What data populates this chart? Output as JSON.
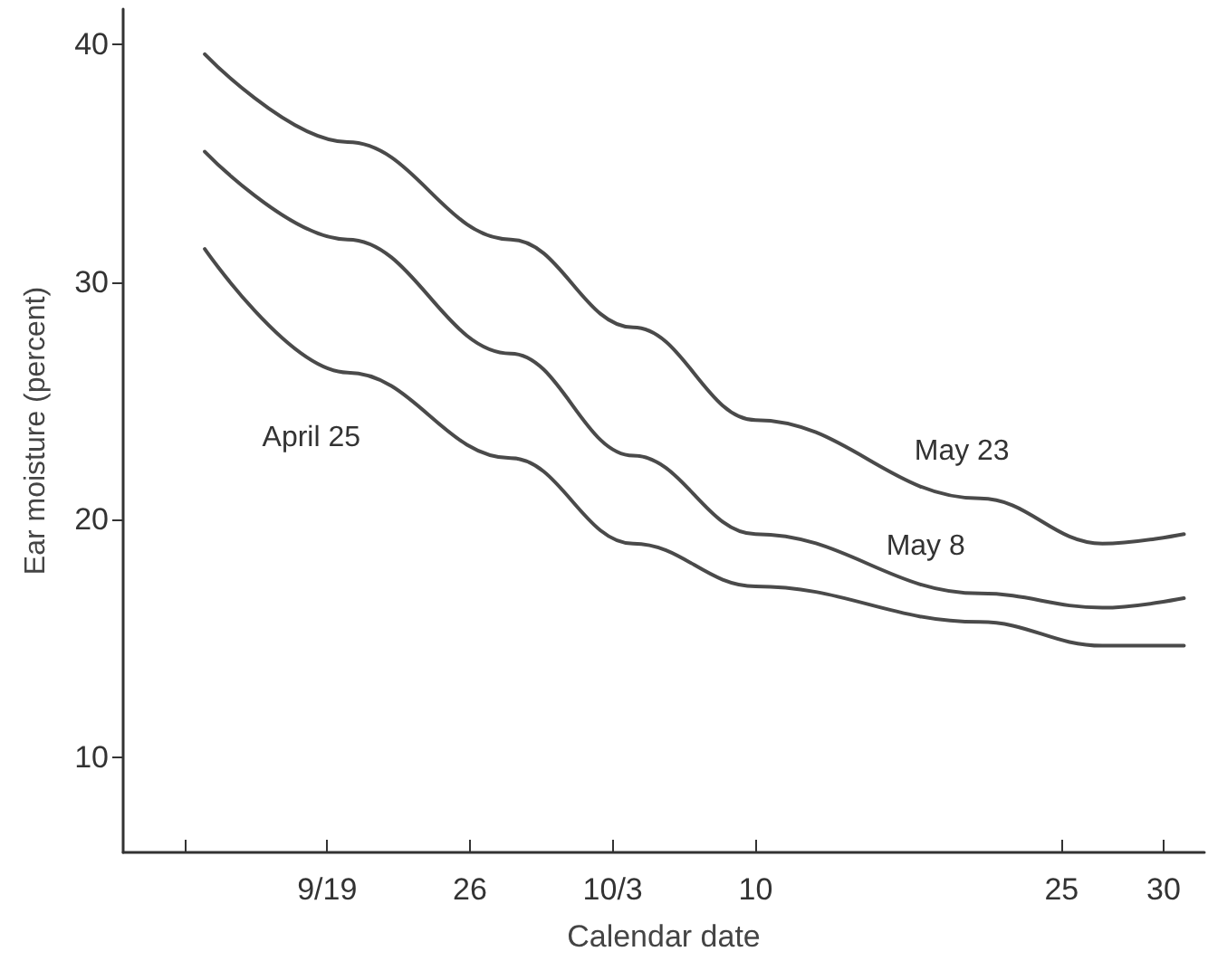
{
  "chart_data": {
    "type": "line",
    "xlabel": "Calendar date",
    "ylabel": "Ear moisture (percent)",
    "xlim": [
      "--09-09",
      "--11-01"
    ],
    "ylim": [
      6,
      41.5
    ],
    "xticks": [
      {
        "value": "--09-12",
        "label": null
      },
      {
        "value": "--09-19",
        "label": "9/19"
      },
      {
        "value": "--09-26",
        "label": "26"
      },
      {
        "value": "--10-03",
        "label": "10/3"
      },
      {
        "value": "--10-10",
        "label": "10"
      },
      {
        "value": "--10-25",
        "label": "25"
      },
      {
        "value": "--10-30",
        "label": "30"
      }
    ],
    "yticks": [
      10,
      20,
      30,
      40
    ],
    "x": [
      "--09-13",
      "--09-20",
      "--09-28",
      "--10-04",
      "--10-10",
      "--10-21",
      "--10-27",
      "--10-31"
    ],
    "series": [
      {
        "name": "May 23",
        "color": "#4a4a4a",
        "values": [
          39.6,
          35.9,
          31.8,
          28.1,
          24.2,
          20.9,
          19.0,
          19.4
        ]
      },
      {
        "name": "May 8",
        "color": "#4a4a4a",
        "values": [
          35.5,
          31.8,
          27.0,
          22.7,
          19.4,
          16.9,
          16.3,
          16.7
        ]
      },
      {
        "name": "April 25",
        "color": "#4a4a4a",
        "values": [
          31.4,
          26.2,
          22.6,
          19.0,
          17.2,
          15.7,
          14.7,
          14.7
        ]
      }
    ],
    "grid": false,
    "marker": "none",
    "line_style": "solid"
  }
}
